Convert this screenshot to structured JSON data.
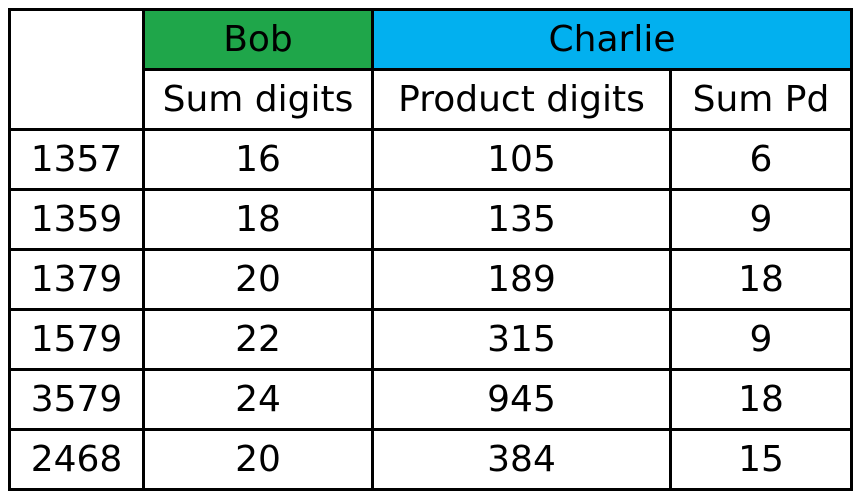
{
  "colors": {
    "bob_header": "#1fa64a",
    "charlie_header": "#02b0ef",
    "border": "#000000",
    "text": "#000000"
  },
  "groups": {
    "bob": "Bob",
    "charlie": "Charlie"
  },
  "columns": {
    "sum_digits": "Sum digits",
    "product_digits": "Product digits",
    "sum_pd": "Sum Pd"
  },
  "rows": [
    {
      "number": "1357",
      "sum_digits": "16",
      "product_digits": "105",
      "sum_pd": "6"
    },
    {
      "number": "1359",
      "sum_digits": "18",
      "product_digits": "135",
      "sum_pd": "9"
    },
    {
      "number": "1379",
      "sum_digits": "20",
      "product_digits": "189",
      "sum_pd": "18"
    },
    {
      "number": "1579",
      "sum_digits": "22",
      "product_digits": "315",
      "sum_pd": "9"
    },
    {
      "number": "3579",
      "sum_digits": "24",
      "product_digits": "945",
      "sum_pd": "18"
    },
    {
      "number": "2468",
      "sum_digits": "20",
      "product_digits": "384",
      "sum_pd": "15"
    }
  ]
}
